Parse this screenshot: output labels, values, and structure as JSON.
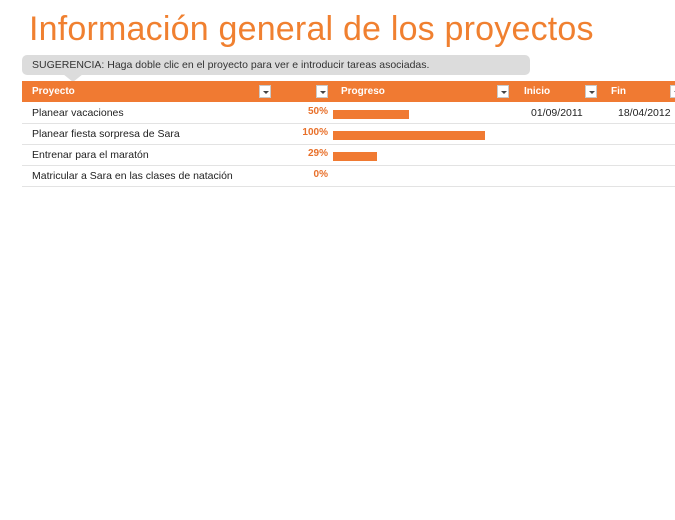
{
  "title": "Información general de los proyectos",
  "tip": "SUGERENCIA: Haga doble clic en el proyecto para ver e introducir tareas asociadas.",
  "columns": {
    "project": "Proyecto",
    "progress": "Progreso",
    "start": "Inicio",
    "end": "Fin"
  },
  "rows": [
    {
      "name": "Planear vacaciones",
      "progress_label": "50%",
      "progress": 0.5,
      "start": "01/09/2011",
      "end": "18/04/2012"
    },
    {
      "name": "Planear fiesta sorpresa de Sara",
      "progress_label": "100%",
      "progress": 1.0,
      "start": "",
      "end": ""
    },
    {
      "name": "Entrenar para el maratón",
      "progress_label": "29%",
      "progress": 0.29,
      "start": "",
      "end": ""
    },
    {
      "name": "Matricular a Sara en las clases de natación",
      "progress_label": "0%",
      "progress": 0.0,
      "start": "",
      "end": ""
    }
  ],
  "colors": {
    "accent": "#f07a32",
    "percent_text": "#e8702a",
    "tip_bg": "#dcdcdc"
  },
  "icons": {
    "filter": "dropdown-arrow-icon"
  }
}
